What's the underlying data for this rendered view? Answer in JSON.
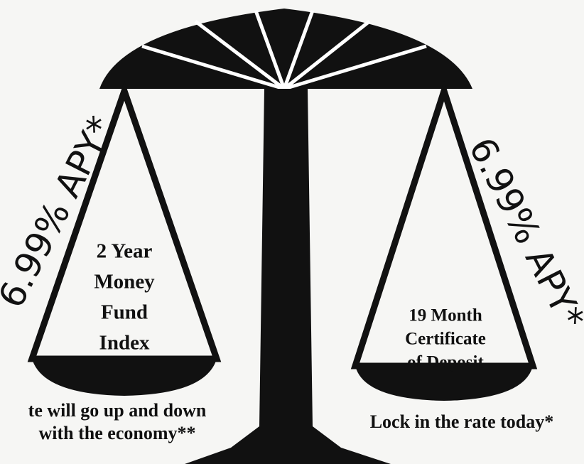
{
  "left": {
    "rate": "6.99% APY*",
    "product": [
      "2 Year",
      "Money",
      "Fund",
      "Index"
    ],
    "note": [
      "te will go up and down",
      "with the economy**"
    ]
  },
  "right": {
    "rate": "6.99% APY*",
    "product": [
      "19 Month",
      "Certificate",
      "of Deposit"
    ],
    "note": [
      "Lock in the rate today*"
    ]
  }
}
